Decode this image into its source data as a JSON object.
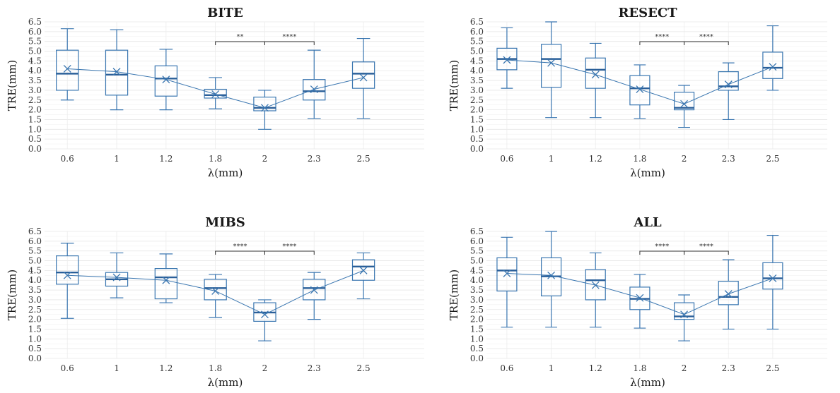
{
  "chart_data": [
    {
      "type": "box",
      "title": "BITE",
      "xlabel": "λ(mm)",
      "ylabel": "TRE(mm)",
      "categories": [
        "0.6",
        "1",
        "1.2",
        "1.8",
        "2",
        "2.3",
        "2.5"
      ],
      "yticks": [
        "0.0",
        "0.5",
        "1.0",
        "1.5",
        "2.0",
        "2.5",
        "3.0",
        "3.5",
        "4.0",
        "4.5",
        "5.0",
        "5.5",
        "6.0",
        "6.5"
      ],
      "ylim": [
        0,
        6.5
      ],
      "grid": true,
      "color": "#3a76b0",
      "boxes": [
        {
          "min": 2.5,
          "q1": 3.0,
          "median": 3.85,
          "q3": 5.05,
          "max": 6.15,
          "mean": 4.1
        },
        {
          "min": 2.0,
          "q1": 2.75,
          "median": 3.8,
          "q3": 5.05,
          "max": 6.1,
          "mean": 3.95
        },
        {
          "min": 2.0,
          "q1": 2.7,
          "median": 3.6,
          "q3": 4.25,
          "max": 5.1,
          "mean": 3.55
        },
        {
          "min": 2.05,
          "q1": 2.6,
          "median": 2.75,
          "q3": 3.05,
          "max": 3.65,
          "mean": 2.8
        },
        {
          "min": 1.0,
          "q1": 1.95,
          "median": 2.1,
          "q3": 2.65,
          "max": 3.0,
          "mean": 2.1
        },
        {
          "min": 1.55,
          "q1": 2.5,
          "median": 2.95,
          "q3": 3.55,
          "max": 5.05,
          "mean": 3.05
        },
        {
          "min": 1.55,
          "q1": 3.1,
          "median": 3.85,
          "q3": 4.45,
          "max": 5.65,
          "mean": 3.65
        }
      ],
      "significance": [
        {
          "from": "1.8",
          "to": "2",
          "label": "**"
        },
        {
          "from": "2",
          "to": "2.3",
          "label": "****"
        }
      ]
    },
    {
      "type": "box",
      "title": "RESECT",
      "xlabel": "λ(mm)",
      "ylabel": "TRE(mm)",
      "categories": [
        "0.6",
        "1",
        "1.2",
        "1.8",
        "2",
        "2.3",
        "2.5"
      ],
      "yticks": [
        "0.0",
        "0.5",
        "1.0",
        "1.5",
        "2.0",
        "2.5",
        "3.0",
        "3.5",
        "4.0",
        "4.5",
        "5.0",
        "5.5",
        "6.0",
        "6.5"
      ],
      "ylim": [
        0,
        6.5
      ],
      "grid": true,
      "color": "#3a76b0",
      "boxes": [
        {
          "min": 3.1,
          "q1": 4.05,
          "median": 4.6,
          "q3": 5.15,
          "max": 6.2,
          "mean": 4.55
        },
        {
          "min": 1.6,
          "q1": 3.15,
          "median": 4.6,
          "q3": 5.35,
          "max": 6.5,
          "mean": 4.4
        },
        {
          "min": 1.6,
          "q1": 3.1,
          "median": 4.05,
          "q3": 4.65,
          "max": 5.4,
          "mean": 3.8
        },
        {
          "min": 1.55,
          "q1": 2.25,
          "median": 3.1,
          "q3": 3.75,
          "max": 4.3,
          "mean": 3.05
        },
        {
          "min": 1.1,
          "q1": 2.0,
          "median": 2.1,
          "q3": 2.9,
          "max": 3.25,
          "mean": 2.3
        },
        {
          "min": 1.5,
          "q1": 3.0,
          "median": 3.2,
          "q3": 3.95,
          "max": 4.4,
          "mean": 3.3
        },
        {
          "min": 3.0,
          "q1": 3.6,
          "median": 4.15,
          "q3": 4.95,
          "max": 6.3,
          "mean": 4.2
        }
      ],
      "significance": [
        {
          "from": "1.8",
          "to": "2",
          "label": "****"
        },
        {
          "from": "2",
          "to": "2.3",
          "label": "****"
        }
      ]
    },
    {
      "type": "box",
      "title": "MIBS",
      "xlabel": "λ(mm)",
      "ylabel": "TRE(mm)",
      "categories": [
        "0.6",
        "1",
        "1.2",
        "1.8",
        "2",
        "2.3",
        "2.5"
      ],
      "yticks": [
        "0.0",
        "0.5",
        "1.0",
        "1.5",
        "2.0",
        "2.5",
        "3.0",
        "3.5",
        "4.0",
        "4.5",
        "5.0",
        "5.5",
        "6.0",
        "6.5"
      ],
      "ylim": [
        0,
        6.5
      ],
      "grid": true,
      "color": "#3a76b0",
      "boxes": [
        {
          "min": 2.05,
          "q1": 3.8,
          "median": 4.4,
          "q3": 5.25,
          "max": 5.9,
          "mean": 4.25
        },
        {
          "min": 3.1,
          "q1": 3.7,
          "median": 4.05,
          "q3": 4.4,
          "max": 5.4,
          "mean": 4.15
        },
        {
          "min": 2.85,
          "q1": 3.05,
          "median": 4.15,
          "q3": 4.6,
          "max": 5.35,
          "mean": 4.0
        },
        {
          "min": 2.1,
          "q1": 3.0,
          "median": 3.6,
          "q3": 4.05,
          "max": 4.3,
          "mean": 3.45
        },
        {
          "min": 0.9,
          "q1": 1.9,
          "median": 2.35,
          "q3": 2.85,
          "max": 3.0,
          "mean": 2.25
        },
        {
          "min": 2.0,
          "q1": 3.0,
          "median": 3.6,
          "q3": 4.05,
          "max": 4.4,
          "mean": 3.5
        },
        {
          "min": 3.05,
          "q1": 4.0,
          "median": 4.7,
          "q3": 5.05,
          "max": 5.4,
          "mean": 4.5
        }
      ],
      "significance": [
        {
          "from": "1.8",
          "to": "2",
          "label": "****"
        },
        {
          "from": "2",
          "to": "2.3",
          "label": "****"
        }
      ]
    },
    {
      "type": "box",
      "title": "ALL",
      "xlabel": "λ(mm)",
      "ylabel": "TRE(mm)",
      "categories": [
        "0.6",
        "1",
        "1.2",
        "1.8",
        "2",
        "2.3",
        "2.5"
      ],
      "yticks": [
        "0.0",
        "0.5",
        "1.0",
        "1.5",
        "2.0",
        "2.5",
        "3.0",
        "3.5",
        "4.0",
        "4.5",
        "5.0",
        "5.5",
        "6.0",
        "6.5"
      ],
      "ylim": [
        0,
        6.5
      ],
      "grid": true,
      "color": "#3a76b0",
      "boxes": [
        {
          "min": 1.6,
          "q1": 3.45,
          "median": 4.5,
          "q3": 5.15,
          "max": 6.2,
          "mean": 4.35
        },
        {
          "min": 1.6,
          "q1": 3.2,
          "median": 4.2,
          "q3": 5.15,
          "max": 6.5,
          "mean": 4.25
        },
        {
          "min": 1.6,
          "q1": 3.0,
          "median": 4.0,
          "q3": 4.55,
          "max": 5.4,
          "mean": 3.75
        },
        {
          "min": 1.55,
          "q1": 2.5,
          "median": 3.05,
          "q3": 3.65,
          "max": 4.3,
          "mean": 3.1
        },
        {
          "min": 0.9,
          "q1": 2.0,
          "median": 2.15,
          "q3": 2.85,
          "max": 3.25,
          "mean": 2.25
        },
        {
          "min": 1.5,
          "q1": 2.75,
          "median": 3.15,
          "q3": 3.95,
          "max": 5.05,
          "mean": 3.3
        },
        {
          "min": 1.5,
          "q1": 3.55,
          "median": 4.1,
          "q3": 4.9,
          "max": 6.3,
          "mean": 4.1
        }
      ],
      "significance": [
        {
          "from": "1.8",
          "to": "2",
          "label": "****"
        },
        {
          "from": "2",
          "to": "2.3",
          "label": "****"
        }
      ]
    }
  ]
}
